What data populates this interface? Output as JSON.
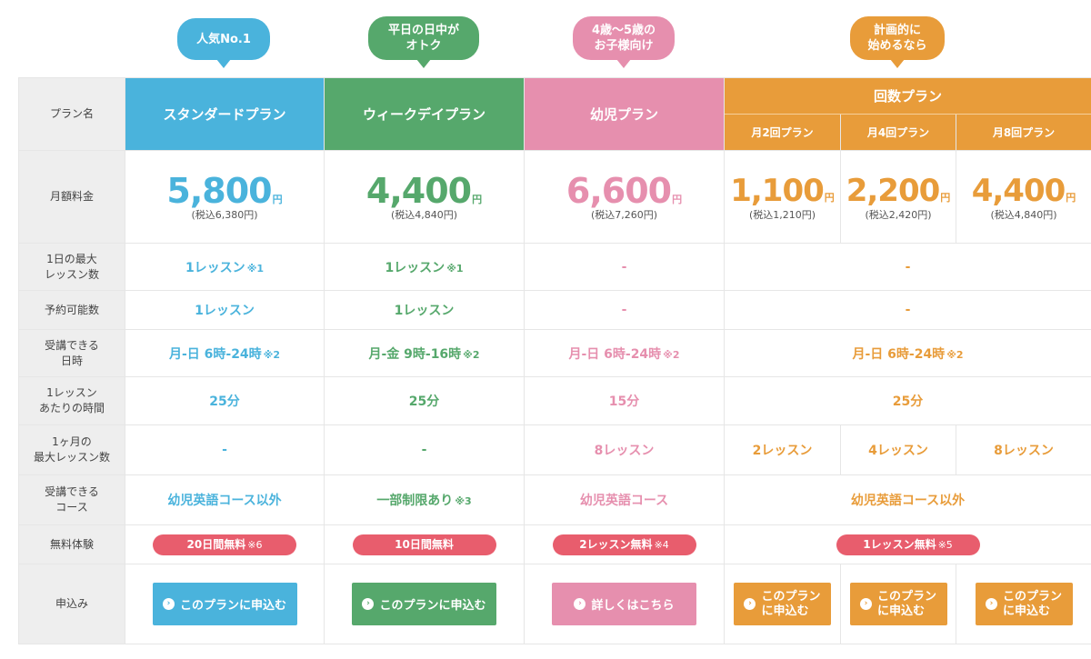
{
  "bubbles": {
    "standard": "人気No.1",
    "weekday_line1": "平日の日中が",
    "weekday_line2": "オトク",
    "kids_line1": "4歳〜5歳の",
    "kids_line2": "お子様向け",
    "count_line1": "計画的に",
    "count_line2": "始めるなら"
  },
  "header": {
    "label": "プラン名",
    "standard": "スタンダードプラン",
    "weekday": "ウィークデイプラン",
    "kids": "幼児プラン",
    "count": "回数プラン",
    "count2": "月2回プラン",
    "count4": "月4回プラン",
    "count8": "月8回プラン"
  },
  "rows": {
    "price": {
      "label": "月額料金",
      "yen": "円",
      "standard": {
        "price": "5,800",
        "tax": "(税込6,380円)"
      },
      "weekday": {
        "price": "4,400",
        "tax": "(税込4,840円)"
      },
      "kids": {
        "price": "6,600",
        "tax": "(税込7,260円)"
      },
      "count2": {
        "price": "1,100",
        "tax": "(税込1,210円)"
      },
      "count4": {
        "price": "2,200",
        "tax": "(税込2,420円)"
      },
      "count8": {
        "price": "4,400",
        "tax": "(税込4,840円)"
      }
    },
    "max_daily": {
      "label_line1": "1日の最大",
      "label_line2": "レッスン数",
      "standard": "1レッスン",
      "standard_note": "※1",
      "weekday": "1レッスン",
      "weekday_note": "※1",
      "kids": "-",
      "count": "-"
    },
    "reservable": {
      "label": "予約可能数",
      "standard": "1レッスン",
      "weekday": "1レッスン",
      "kids": "-",
      "count": "-"
    },
    "schedule": {
      "label_line1": "受講できる",
      "label_line2": "日時",
      "standard": "月-日 6時-24時",
      "standard_note": "※2",
      "weekday": "月-金 9時-16時",
      "weekday_note": "※2",
      "kids": "月-日 6時-24時",
      "kids_note": "※2",
      "count": "月-日 6時-24時",
      "count_note": "※2"
    },
    "duration": {
      "label_line1": "1レッスン",
      "label_line2": "あたりの時間",
      "standard": "25分",
      "weekday": "25分",
      "kids": "15分",
      "count": "25分"
    },
    "monthly_max": {
      "label_line1": "1ヶ月の",
      "label_line2": "最大レッスン数",
      "standard": "-",
      "weekday": "-",
      "kids": "8レッスン",
      "count2": "2レッスン",
      "count4": "4レッスン",
      "count8": "8レッスン"
    },
    "courses": {
      "label_line1": "受講できる",
      "label_line2": "コース",
      "standard": "幼児英語コース以外",
      "weekday": "一部制限あり",
      "weekday_note": "※3",
      "kids": "幼児英語コース",
      "count": "幼児英語コース以外"
    },
    "trial": {
      "label": "無料体験",
      "standard": "20日間無料",
      "standard_note": "※6",
      "weekday": "10日間無料",
      "kids": "2レッスン無料",
      "kids_note": "※4",
      "count": "1レッスン無料",
      "count_note": "※5"
    },
    "apply": {
      "label": "申込み",
      "standard": "このプランに申込む",
      "weekday": "このプランに申込む",
      "kids": "詳しくはこちら",
      "count_line1": "このプラン",
      "count_line2": "に申込む"
    }
  },
  "colors": {
    "standard": "#4ab3dc",
    "weekday": "#56a86c",
    "kids": "#e68fae",
    "count": "#e89c3a",
    "trial_pill": "#e85d6d",
    "label_bg": "#eeeeee"
  },
  "icons": {
    "button_arrow": "chevron-right-circle-icon"
  }
}
